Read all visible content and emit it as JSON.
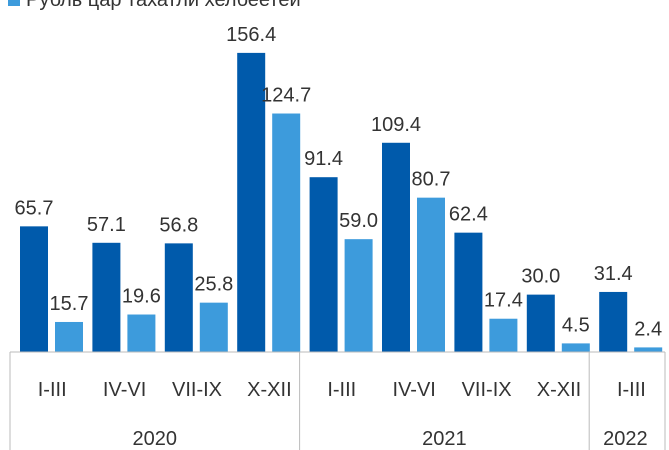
{
  "chart_data": {
    "type": "bar",
    "categories": [
      "I-III",
      "IV-VI",
      "VII-IX",
      "X-XII",
      "I-III",
      "IV-VI",
      "VII-IX",
      "X-XII",
      "I-III"
    ],
    "year_labels": [
      "2020",
      "2021",
      "2022"
    ],
    "series": [
      {
        "color": "#005aab",
        "values": [
          65.7,
          57.1,
          56.8,
          156.4,
          91.4,
          109.4,
          62.4,
          30.0,
          31.4
        ],
        "value_labels": [
          "65.7",
          "57.1",
          "56.8",
          "156.4",
          "91.4",
          "109.4",
          "62.4",
          "30.0",
          "31.4"
        ]
      },
      {
        "name": "Рубль цар тахатли хелбеетеи",
        "color": "#3d9bdc",
        "values": [
          15.7,
          19.6,
          25.8,
          124.7,
          59.0,
          80.7,
          17.4,
          4.5,
          2.4
        ],
        "value_labels": [
          "15.7",
          "19.6",
          "25.8",
          "124.7",
          "59.0",
          "80.7",
          "17.4",
          "4.5",
          "2.4"
        ]
      }
    ],
    "ylim": [
      0,
      160
    ]
  }
}
